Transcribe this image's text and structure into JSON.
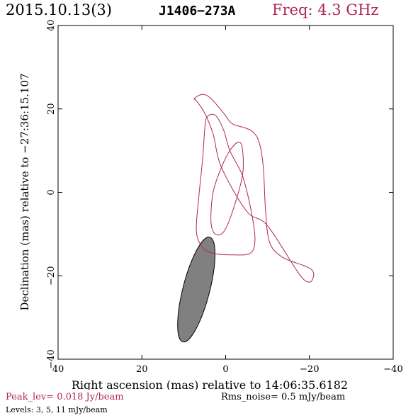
{
  "header": {
    "date": "2015.10.13(3)",
    "source": "J1406−273A",
    "freq": "Freq: 4.3 GHz"
  },
  "chart_data": {
    "type": "contour",
    "xlabel": "Right ascension (mas) relative to 14:06:35.6182",
    "ylabel": "Declination (mas) relative to −27:36:15.107",
    "xlim": [
      40,
      -40
    ],
    "ylim": [
      -40,
      40
    ],
    "x_ticks": [
      "40",
      "20",
      "0",
      "−20",
      "−40"
    ],
    "y_ticks": [
      "−40",
      "−20",
      "0",
      "20",
      "40"
    ],
    "contour_color": "#b0284f",
    "contour_levels_mjy": [
      3,
      5,
      11
    ],
    "contours": [
      {
        "level": 3,
        "points": [
          [
            7.5,
            22.5
          ],
          [
            5.5,
            23.5
          ],
          [
            3.5,
            22.5
          ],
          [
            0.5,
            19.0
          ],
          [
            -1.5,
            16.5
          ],
          [
            -4.5,
            15.5
          ],
          [
            -6.5,
            14.5
          ],
          [
            -8.0,
            12.0
          ],
          [
            -9.0,
            6.0
          ],
          [
            -9.5,
            -4.0
          ],
          [
            -10.5,
            -12.0
          ],
          [
            -13.5,
            -15.5
          ],
          [
            -18.5,
            -17.5
          ],
          [
            -20.5,
            -18.5
          ],
          [
            -21.0,
            -20.0
          ],
          [
            -20.0,
            -21.5
          ],
          [
            -17.5,
            -19.5
          ],
          [
            -10.0,
            -8.0
          ],
          [
            -5.0,
            -4.5
          ],
          [
            1.0,
            6.0
          ],
          [
            3.0,
            14.0
          ],
          [
            5.0,
            19.0
          ],
          [
            7.0,
            22.0
          ]
        ]
      },
      {
        "level": 5,
        "points": [
          [
            2.5,
            18.5
          ],
          [
            4.5,
            18.0
          ],
          [
            5.0,
            15.0
          ],
          [
            5.5,
            8.0
          ],
          [
            6.5,
            -2.0
          ],
          [
            7.0,
            -9.0
          ],
          [
            6.0,
            -12.5
          ],
          [
            3.5,
            -14.5
          ],
          [
            -2.0,
            -15.0
          ],
          [
            -6.0,
            -14.5
          ],
          [
            -7.0,
            -11.0
          ],
          [
            -6.0,
            -4.0
          ],
          [
            -4.0,
            4.0
          ],
          [
            -1.0,
            10.0
          ],
          [
            0.5,
            15.0
          ]
        ]
      },
      {
        "level": 11,
        "points": [
          [
            -3.0,
            12.0
          ],
          [
            -4.0,
            10.5
          ],
          [
            -4.0,
            4.0
          ],
          [
            -1.5,
            -5.0
          ],
          [
            0.5,
            -9.5
          ],
          [
            2.5,
            -10.0
          ],
          [
            3.5,
            -7.0
          ],
          [
            3.0,
            0.0
          ],
          [
            1.0,
            6.0
          ],
          [
            -1.0,
            10.0
          ]
        ]
      }
    ],
    "beam": {
      "center_x": 7.0,
      "center_y": -23.3,
      "major_mas": 25.8,
      "minor_mas": 6.4,
      "pa_deg": 14.4,
      "fill": "#808080"
    }
  },
  "footer": {
    "peak": "Peak_lev=  0.018 Jy/beam",
    "rms": "Rms_noise=  0.5 mJy/beam",
    "levels": "Levels:   3,   5,   11 mJy/beam"
  }
}
